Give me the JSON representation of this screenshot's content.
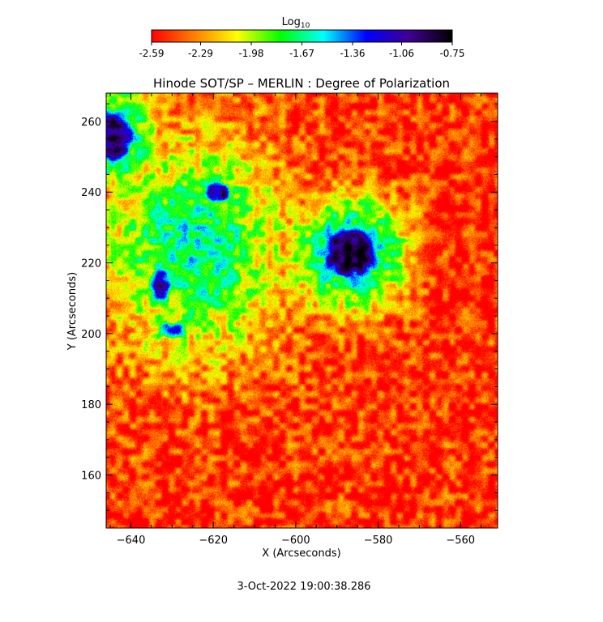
{
  "chart_data": {
    "type": "heatmap",
    "title": "Hinode SOT/SP – MERLIN : Degree of Polarization",
    "xlabel": "X (Arcseconds)",
    "ylabel": "Y (Arcseconds)",
    "xlim": [
      -646,
      -551
    ],
    "ylim": [
      145,
      268
    ],
    "x_ticks": [
      -640,
      -620,
      -600,
      -580,
      -560
    ],
    "y_ticks": [
      160,
      180,
      200,
      220,
      240,
      260
    ],
    "colorbar": {
      "label_base": "Log",
      "label_sub": "10",
      "range": [
        -2.59,
        -0.75
      ],
      "ticks": [
        "-2.59",
        "-2.29",
        "-1.98",
        "-1.67",
        "-1.36",
        "-1.06",
        "-0.75"
      ],
      "colors": [
        "#ff0000",
        "#ff8000",
        "#ffff00",
        "#00ff00",
        "#00ffff",
        "#0000ff",
        "#400090",
        "#000000"
      ]
    },
    "features": [
      {
        "x": -587,
        "y": 223,
        "rx": 7,
        "ry": 8,
        "level": -0.8
      },
      {
        "x": -644,
        "y": 256,
        "rx": 5,
        "ry": 8,
        "level": -0.9
      },
      {
        "x": -619,
        "y": 240,
        "rx": 3.5,
        "ry": 3.5,
        "level": -1.0
      },
      {
        "x": -633,
        "y": 214,
        "rx": 3,
        "ry": 5,
        "level": -1.1
      },
      {
        "x": -630,
        "y": 201,
        "rx": 4,
        "ry": 2.5,
        "level": -1.3
      }
    ],
    "timestamp": "3-Oct-2022 19:00:38.286"
  }
}
